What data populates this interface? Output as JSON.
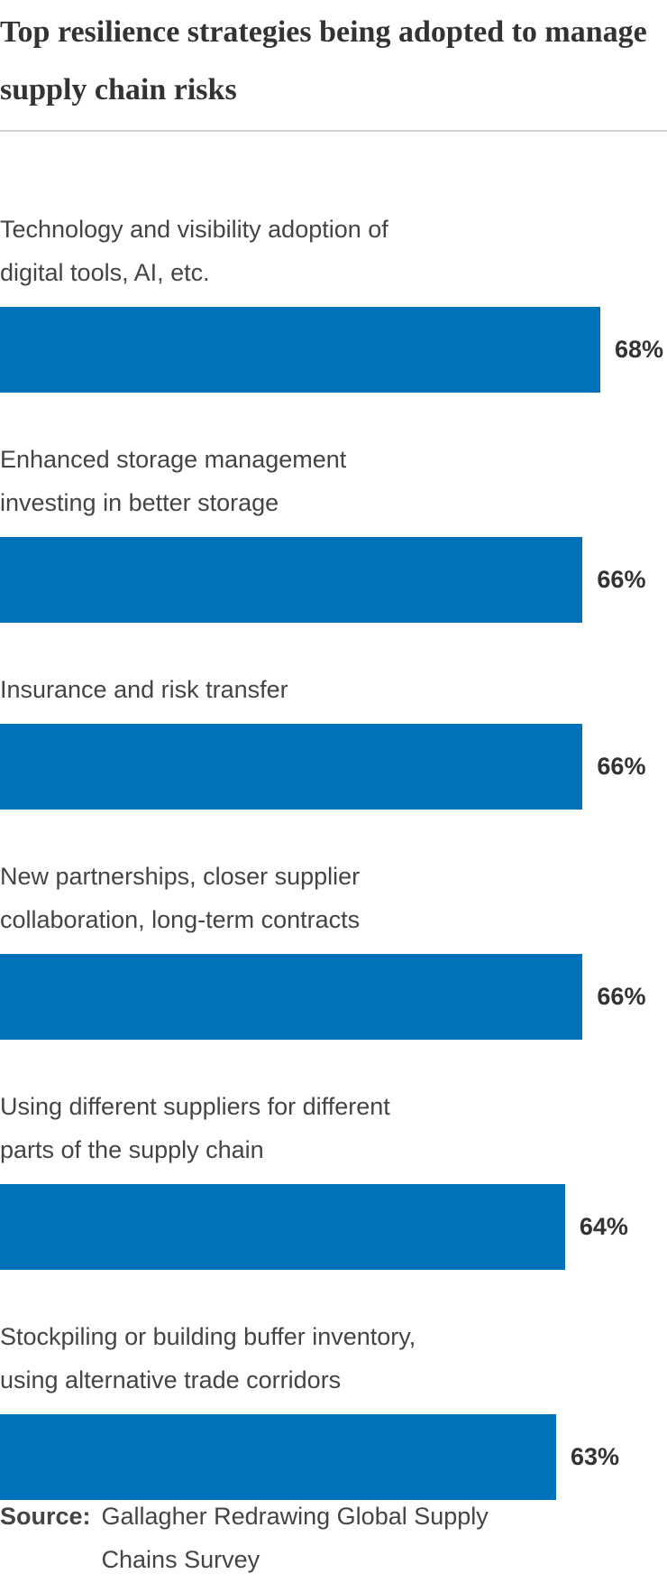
{
  "chart_data": {
    "type": "bar",
    "orientation": "horizontal",
    "title": "Top resilience strategies being adopted to manage supply chain risks",
    "categories": [
      "Technology and visibility adoption of\ndigital tools, AI, etc.",
      "Enhanced storage management\ninvesting in better storage",
      "Insurance and risk transfer",
      "New partnerships, closer supplier\ncollaboration, long-term contracts",
      "Using different suppliers for different\nparts of the supply chain",
      "Stockpiling or building buffer inventory,\nusing alternative trade corridors"
    ],
    "values": [
      68,
      66,
      66,
      66,
      64,
      63
    ],
    "value_labels": [
      "68%",
      "66%",
      "66%",
      "66%",
      "64%",
      "63%"
    ],
    "color": "#0072bc",
    "source_label": "Source:",
    "source_text": "Gallagher Redrawing Global Supply Chains Survey"
  }
}
